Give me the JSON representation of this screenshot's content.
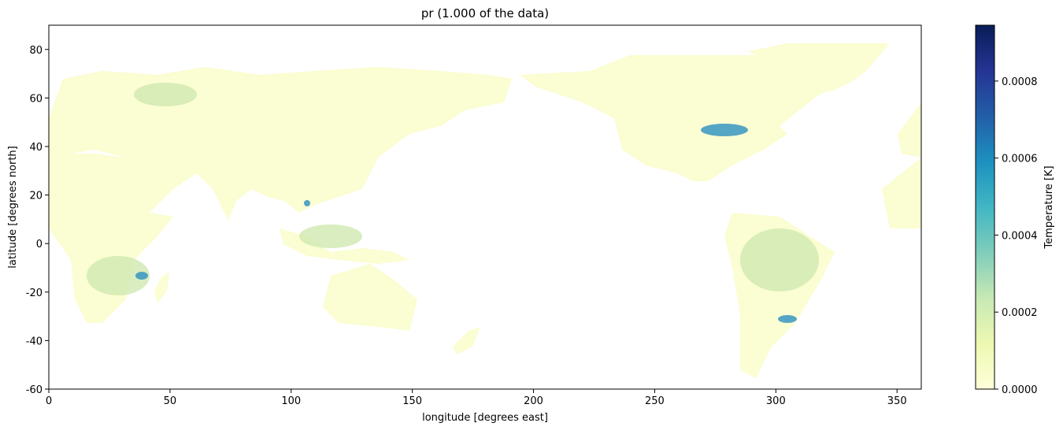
{
  "chart_data": {
    "type": "map",
    "title": "pr (1.000 of the data)",
    "xlabel": "longitude [degrees east]",
    "ylabel": "latitude [degrees north]",
    "xlim": [
      0,
      360
    ],
    "ylim": [
      -60,
      90
    ],
    "xticks": [
      0,
      50,
      100,
      150,
      200,
      250,
      300,
      350
    ],
    "yticks": [
      -60,
      -40,
      -20,
      0,
      20,
      40,
      60,
      80
    ],
    "colorbar": {
      "label": "Temperature [K]",
      "clim": [
        0,
        0.000945
      ],
      "ticks": [
        {
          "value": 0,
          "label": "0.0000"
        },
        {
          "value": 0.0002,
          "label": "0.0002"
        },
        {
          "value": 0.0004,
          "label": "0.0004"
        },
        {
          "value": 0.0006,
          "label": "0.0006"
        },
        {
          "value": 0.0008,
          "label": "0.0008"
        }
      ],
      "colors": [
        "#ffffd9",
        "#edf8b1",
        "#c7e9b4",
        "#7fcdbb",
        "#41b6c4",
        "#1d91c0",
        "#225ea8",
        "#253494",
        "#081d58"
      ]
    }
  }
}
